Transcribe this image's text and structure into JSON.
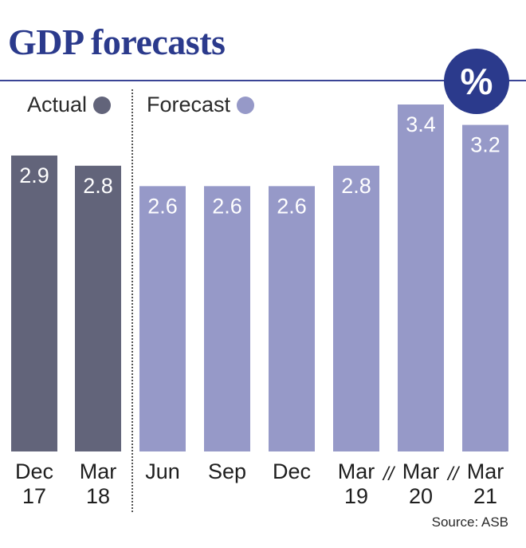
{
  "header": {
    "title": "GDP forecasts",
    "unit_badge": "%"
  },
  "legend": [
    {
      "label": "Actual",
      "color": "#62647a"
    },
    {
      "label": "Forecast",
      "color": "#9699c8"
    }
  ],
  "source": "Source: ASB",
  "chart_data": {
    "type": "bar",
    "title": "GDP forecasts",
    "unit": "%",
    "categories": [
      [
        "Dec",
        "17"
      ],
      [
        "Mar",
        "18"
      ],
      [
        "Jun"
      ],
      [
        "Sep"
      ],
      [
        "Dec"
      ],
      [
        "Mar",
        "19"
      ],
      [
        "Mar",
        "20"
      ],
      [
        "Mar",
        "21"
      ]
    ],
    "values": [
      2.9,
      2.8,
      2.6,
      2.6,
      2.6,
      2.8,
      3.4,
      3.2
    ],
    "value_labels": [
      "2.9",
      "2.8",
      "2.6",
      "2.6",
      "2.6",
      "2.8",
      "3.4",
      "3.2"
    ],
    "series_of_bar": [
      "Actual",
      "Actual",
      "Forecast",
      "Forecast",
      "Forecast",
      "Forecast",
      "Forecast",
      "Forecast"
    ],
    "axis_breaks": [
      "//",
      "//"
    ],
    "ylim": [
      0,
      3.4
    ],
    "grid": false,
    "legend_position": "top-left"
  }
}
